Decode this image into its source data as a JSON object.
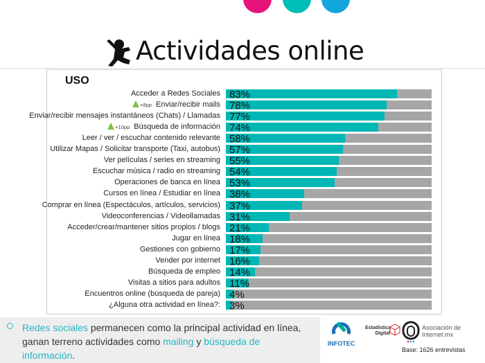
{
  "header": {
    "title": "Actividades online",
    "dot_colors": [
      "#e6147a",
      "#00bdb6",
      "#12a5de"
    ]
  },
  "chart_data": {
    "type": "bar",
    "orientation": "horizontal",
    "stacked_remainder": true,
    "title": "USO",
    "xlim": [
      0,
      100
    ],
    "colors": {
      "value": "#00b7b5",
      "remainder": "#a6a6a6"
    },
    "categories": [
      {
        "label": "Acceder a Redes Sociales",
        "value": 83,
        "badge": ""
      },
      {
        "label": "Enviar/recibir mails",
        "value": 78,
        "badge": "+8pp"
      },
      {
        "label": "Enviar/recibir mensajes instantáneos (Chats) / Llamadas",
        "value": 77,
        "badge": ""
      },
      {
        "label": "Búsqueda de información",
        "value": 74,
        "badge": "+10pp"
      },
      {
        "label": "Leer / ver / escuchar contenido relevante",
        "value": 58,
        "badge": ""
      },
      {
        "label": "Utilizar Mapas / Solicitar transporte (Taxi, autobus)",
        "value": 57,
        "badge": ""
      },
      {
        "label": "Ver películas / series en streaming",
        "value": 55,
        "badge": ""
      },
      {
        "label": "Escuchar música / radio en streaming",
        "value": 54,
        "badge": ""
      },
      {
        "label": "Operaciones de banca en línea",
        "value": 53,
        "badge": ""
      },
      {
        "label": "Cursos en línea / Estudiar en línea",
        "value": 38,
        "badge": ""
      },
      {
        "label": "Comprar en línea (Espectáculos, artículos, servicios)",
        "value": 37,
        "badge": ""
      },
      {
        "label": "Videoconferencias / Videollamadas",
        "value": 31,
        "badge": ""
      },
      {
        "label": "Acceder/crear/mantener sitios propios / blogs",
        "value": 21,
        "badge": ""
      },
      {
        "label": "Jugar en línea",
        "value": 18,
        "badge": ""
      },
      {
        "label": "Gestiones con gobierno",
        "value": 17,
        "badge": ""
      },
      {
        "label": "Vender por internet",
        "value": 16,
        "badge": ""
      },
      {
        "label": "Búsqueda de empleo",
        "value": 14,
        "badge": ""
      },
      {
        "label": "Visitas a sitios para adultos",
        "value": 11,
        "badge": ""
      },
      {
        "label": "Encuentros online (búsqueda de pareja)",
        "value": 4,
        "badge": ""
      },
      {
        "label": "¿Alguna otra actividad en línea?:",
        "value": 3,
        "badge": ""
      }
    ]
  },
  "note": {
    "parts": [
      {
        "text": "Redes sociales",
        "hl": true
      },
      {
        "text": " permanecen como la principal actividad en línea, ganan terreno actividades como ",
        "hl": false
      },
      {
        "text": "mailing",
        "hl": true
      },
      {
        "text": " y ",
        "hl": false
      },
      {
        "text": "búsqueda de información",
        "hl": true
      },
      {
        "text": ".",
        "hl": false
      }
    ]
  },
  "footer": {
    "logos": {
      "infotec": "INFOTEC",
      "estadistica": "Estadística Digital",
      "amipci": "Asociación de Internet.mx"
    },
    "base": "Base: 1626 entrevistas"
  }
}
